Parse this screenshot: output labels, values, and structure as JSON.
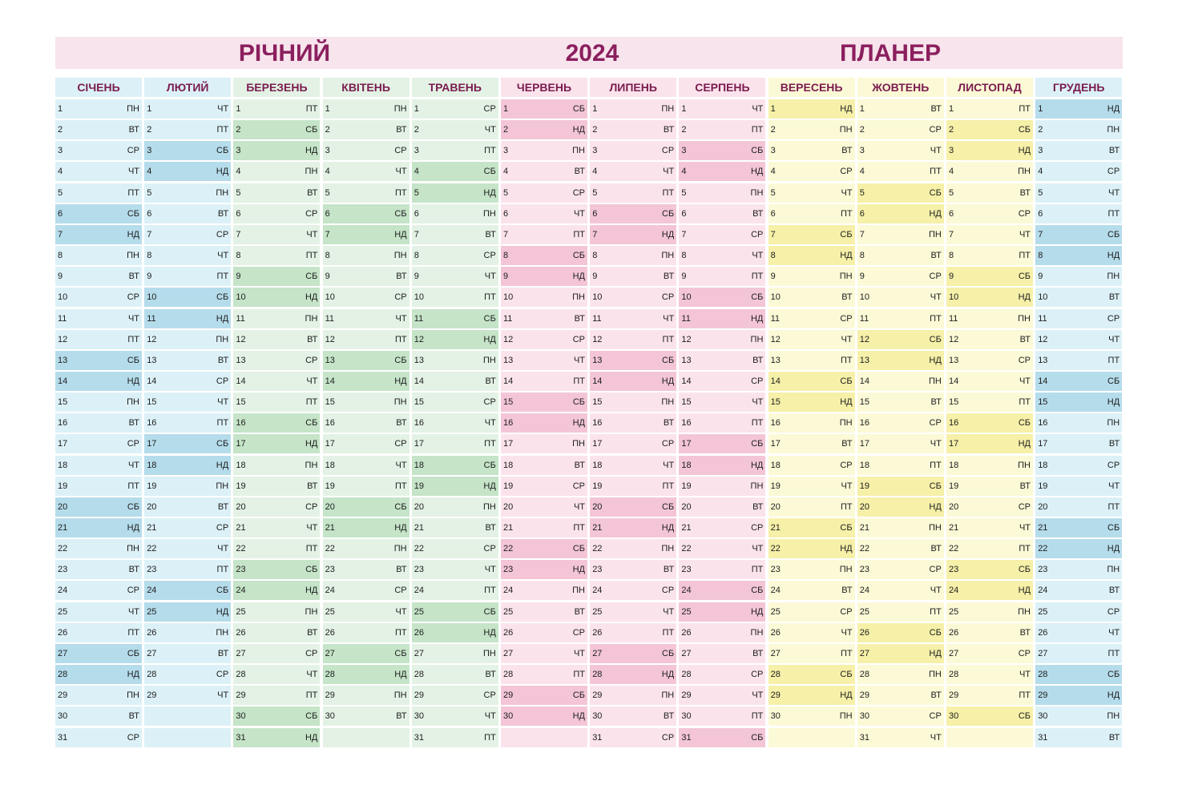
{
  "header": {
    "left_word": "РІЧНИЙ",
    "year": "2024",
    "right_word": "ПЛАНЕР"
  },
  "colors": {
    "title_bg": "#f7e4ec",
    "title_text": "#8b1f5e",
    "month_text": "#7a1c4f",
    "winter": {
      "light": "#dcf1f7",
      "dark": "#b5dceb"
    },
    "spring": {
      "light": "#e3f2e4",
      "dark": "#c5e4c8"
    },
    "summer": {
      "light": "#fbe3ec",
      "dark": "#f3c5d7"
    },
    "autumn": {
      "light": "#fcf9d6",
      "dark": "#f6f0a8"
    }
  },
  "weekend_days": [
    "СБ",
    "НД"
  ],
  "months": [
    {
      "name": "СІЧЕНЬ",
      "days": 31,
      "start": "ПН",
      "season": "winter"
    },
    {
      "name": "ЛЮТИЙ",
      "days": 29,
      "start": "ЧТ",
      "season": "winter"
    },
    {
      "name": "БЕРЕЗЕНЬ",
      "days": 31,
      "start": "ПТ",
      "season": "spring"
    },
    {
      "name": "КВІТЕНЬ",
      "days": 30,
      "start": "ПН",
      "season": "spring"
    },
    {
      "name": "ТРАВЕНЬ",
      "days": 31,
      "start": "СР",
      "season": "spring"
    },
    {
      "name": "ЧЕРВЕНЬ",
      "days": 30,
      "start": "СБ",
      "season": "summer"
    },
    {
      "name": "ЛИПЕНЬ",
      "days": 31,
      "start": "ПН",
      "season": "summer"
    },
    {
      "name": "СЕРПЕНЬ",
      "days": 31,
      "start": "ЧТ",
      "season": "summer"
    },
    {
      "name": "ВЕРЕСЕНЬ",
      "days": 30,
      "start": "НД",
      "season": "autumn"
    },
    {
      "name": "ЖОВТЕНЬ",
      "days": 31,
      "start": "ВТ",
      "season": "autumn"
    },
    {
      "name": "ЛИСТОПАД",
      "days": 30,
      "start": "ПТ",
      "season": "autumn"
    },
    {
      "name": "ГРУДЕНЬ",
      "days": 31,
      "start": "НД",
      "season": "winter"
    }
  ],
  "weekdays": [
    "ПН",
    "ВТ",
    "СР",
    "ЧТ",
    "ПТ",
    "СБ",
    "НД"
  ]
}
